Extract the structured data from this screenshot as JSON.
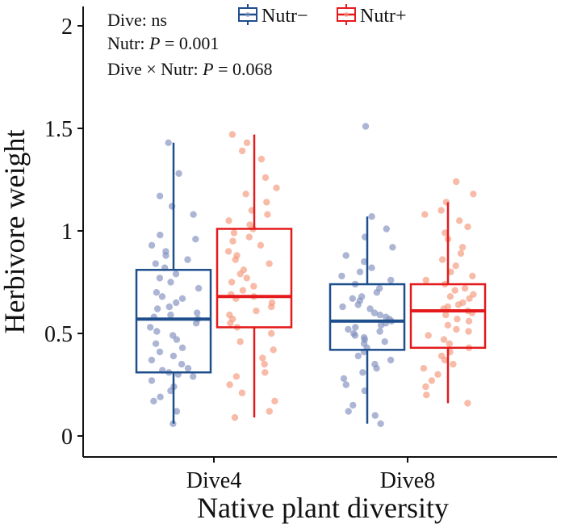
{
  "chart_data": {
    "type": "box",
    "xlabel": "Native plant diversity",
    "ylabel": "Herbivore weight",
    "categories": [
      "Dive4",
      "Dive8"
    ],
    "ylim": [
      0,
      2.1
    ],
    "yticks": [
      0,
      0.5,
      1,
      1.5,
      2
    ],
    "ytick_labels": [
      "0",
      "0.5",
      "1",
      "1.5",
      "2"
    ],
    "legend": {
      "position": "top",
      "entries": [
        "Nutr−",
        "Nutr+"
      ]
    },
    "annotations": {
      "line1": "Dive: ns",
      "line2_prefix": "Nutr: ",
      "line2_p": "P",
      "line2_suffix": " = 0.001",
      "line3_prefix": "Dive × Nutr: ",
      "line3_p": "P",
      "line3_suffix": " = 0.068"
    },
    "colors": {
      "Nutr−": "#1f4e8c",
      "Nutr+": "#e41a1c",
      "points_Nutr−": "#7f8fbd",
      "points_Nutr+": "#f4977a"
    },
    "series": [
      {
        "name": "Nutr−",
        "boxes": [
          {
            "category": "Dive4",
            "min": 0.06,
            "q1": 0.31,
            "median": 0.57,
            "q3": 0.81,
            "max": 1.43
          },
          {
            "category": "Dive8",
            "min": 0.06,
            "q1": 0.42,
            "median": 0.56,
            "q3": 0.74,
            "max": 1.07
          }
        ],
        "points": {
          "Dive4": [
            0.06,
            0.12,
            0.17,
            0.19,
            0.22,
            0.24,
            0.27,
            0.29,
            0.3,
            0.31,
            0.32,
            0.33,
            0.35,
            0.37,
            0.39,
            0.41,
            0.43,
            0.45,
            0.47,
            0.49,
            0.51,
            0.53,
            0.55,
            0.57,
            0.58,
            0.59,
            0.6,
            0.62,
            0.63,
            0.65,
            0.67,
            0.68,
            0.7,
            0.72,
            0.75,
            0.77,
            0.79,
            0.82,
            0.84,
            0.86,
            0.88,
            0.9,
            0.93,
            0.96,
            0.98,
            1.08,
            1.12,
            1.17,
            1.28,
            1.43
          ],
          "Dive8": [
            0.06,
            0.1,
            0.12,
            0.15,
            0.22,
            0.25,
            0.28,
            0.31,
            0.33,
            0.35,
            0.37,
            0.39,
            0.41,
            0.43,
            0.45,
            0.46,
            0.47,
            0.48,
            0.49,
            0.5,
            0.51,
            0.52,
            0.53,
            0.54,
            0.55,
            0.56,
            0.57,
            0.58,
            0.59,
            0.6,
            0.62,
            0.63,
            0.64,
            0.66,
            0.67,
            0.68,
            0.7,
            0.72,
            0.74,
            0.76,
            0.78,
            0.8,
            0.82,
            0.85,
            0.88,
            0.92,
            0.97,
            1.01,
            1.07,
            1.51
          ]
        }
      },
      {
        "name": "Nutr+",
        "boxes": [
          {
            "category": "Dive4",
            "min": 0.09,
            "q1": 0.53,
            "median": 0.68,
            "q3": 1.01,
            "max": 1.47
          },
          {
            "category": "Dive8",
            "min": 0.16,
            "q1": 0.43,
            "median": 0.61,
            "q3": 0.74,
            "max": 1.14
          }
        ],
        "points": {
          "Dive4": [
            0.09,
            0.12,
            0.17,
            0.21,
            0.25,
            0.29,
            0.31,
            0.35,
            0.38,
            0.42,
            0.46,
            0.5,
            0.53,
            0.55,
            0.57,
            0.59,
            0.61,
            0.63,
            0.65,
            0.67,
            0.68,
            0.69,
            0.71,
            0.73,
            0.75,
            0.77,
            0.79,
            0.81,
            0.84,
            0.86,
            0.88,
            0.9,
            0.93,
            0.95,
            0.97,
            0.99,
            1.01,
            1.03,
            1.05,
            1.08,
            1.1,
            1.14,
            1.18,
            1.21,
            1.26,
            1.35,
            1.39,
            1.43,
            1.47
          ],
          "Dive8": [
            0.16,
            0.2,
            0.24,
            0.27,
            0.3,
            0.33,
            0.35,
            0.37,
            0.39,
            0.41,
            0.43,
            0.45,
            0.47,
            0.49,
            0.51,
            0.52,
            0.54,
            0.56,
            0.57,
            0.59,
            0.6,
            0.61,
            0.62,
            0.63,
            0.64,
            0.65,
            0.67,
            0.68,
            0.69,
            0.71,
            0.72,
            0.74,
            0.76,
            0.78,
            0.8,
            0.83,
            0.86,
            0.89,
            0.92,
            0.96,
            0.99,
            1.02,
            1.05,
            1.08,
            1.1,
            1.14,
            1.18,
            1.24
          ]
        }
      }
    ]
  }
}
